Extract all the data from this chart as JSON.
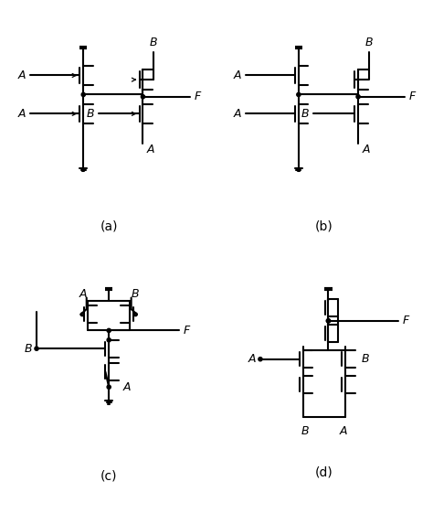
{
  "background": "#ffffff",
  "line_color": "#000000",
  "line_width": 1.5,
  "fig_w": 4.74,
  "fig_h": 5.73,
  "dpi": 100,
  "labels_a": {
    "A_top": "A",
    "A_bot": "A",
    "B": "B",
    "F": "F",
    "sub": "(a)"
  },
  "labels_b": {
    "A_top": "A",
    "A_bot": "A",
    "B": "B",
    "F": "F",
    "sub": "(b)"
  },
  "labels_c": {
    "A": "A",
    "B_top": "B",
    "B_left": "B",
    "F": "F",
    "A_bot": "A",
    "sub": "(c)"
  },
  "labels_d": {
    "A": "A",
    "B_top": "B",
    "B_right": "B",
    "F": "F",
    "sub": "(d)"
  }
}
